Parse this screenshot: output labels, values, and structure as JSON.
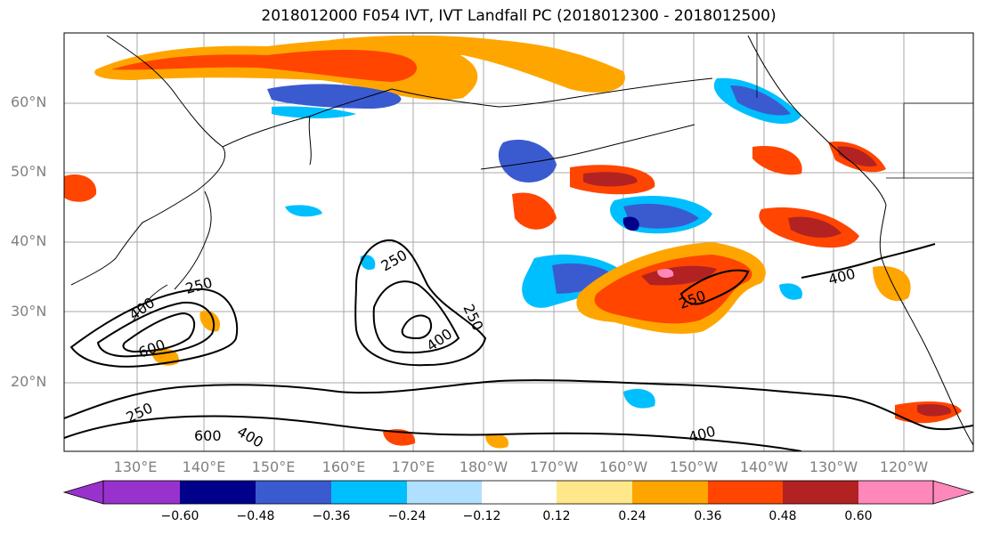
{
  "title": "2018012000 F054 IVT, IVT Landfall PC (2018012300 - 2018012500)",
  "map": {
    "lat_ticks": [
      "60°N",
      "50°N",
      "40°N",
      "30°N",
      "20°N"
    ],
    "lon_ticks": [
      "130°E",
      "140°E",
      "150°E",
      "160°E",
      "170°E",
      "180°W",
      "170°W",
      "160°W",
      "150°W",
      "140°W",
      "130°W",
      "120°W"
    ],
    "contour_labels": [
      "250",
      "400",
      "600",
      "250",
      "400",
      "250",
      "400",
      "600",
      "250",
      "400",
      "250",
      "400"
    ]
  },
  "colorbar": {
    "colors": [
      "#9932cc",
      "#00008b",
      "#3a5bd0",
      "#00bfff",
      "#b0e0ff",
      "#ffffff",
      "#ffe88a",
      "#ffa500",
      "#ff4500",
      "#b22222",
      "#ff88bb"
    ],
    "tick_labels": [
      "−0.60",
      "−0.48",
      "−0.36",
      "−0.24",
      "−0.12",
      "0.12",
      "0.24",
      "0.36",
      "0.48",
      "0.60"
    ]
  }
}
